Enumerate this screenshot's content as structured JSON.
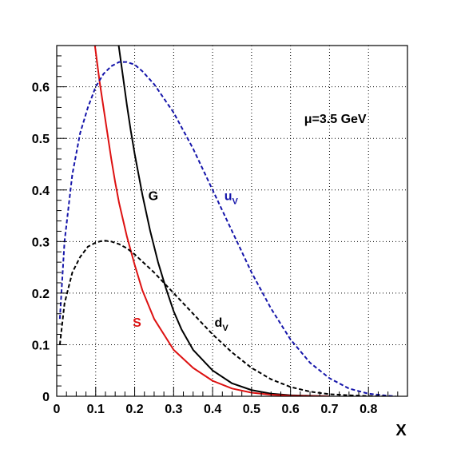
{
  "chart_data": {
    "type": "line",
    "title": "",
    "xlabel": "X",
    "ylabel": "",
    "xlim": [
      0,
      0.9
    ],
    "ylim": [
      0,
      0.68
    ],
    "xticks": [
      0,
      0.1,
      0.2,
      0.3,
      0.4,
      0.5,
      0.6,
      0.7,
      0.8
    ],
    "yticks": [
      0,
      0.1,
      0.2,
      0.3,
      0.4,
      0.5,
      0.6
    ],
    "xtick_labels": [
      "0",
      "0.1",
      "0.2",
      "0.3",
      "0.4",
      "0.5",
      "0.6",
      "0.7",
      "0.8"
    ],
    "ytick_labels": [
      "0",
      "0.1",
      "0.2",
      "0.3",
      "0.4",
      "0.5",
      "0.6"
    ],
    "grid": true,
    "annotation": {
      "mu": "μ",
      "text": "=3.5 GeV"
    },
    "series": [
      {
        "name": "G",
        "color": "#000000",
        "dash": "solid",
        "x": [
          0.159,
          0.17,
          0.18,
          0.19,
          0.2,
          0.22,
          0.24,
          0.26,
          0.28,
          0.3,
          0.32,
          0.35,
          0.4,
          0.45,
          0.5,
          0.55,
          0.6,
          0.65,
          0.7
        ],
        "y": [
          0.68,
          0.62,
          0.565,
          0.515,
          0.47,
          0.39,
          0.32,
          0.26,
          0.21,
          0.165,
          0.13,
          0.09,
          0.05,
          0.025,
          0.012,
          0.005,
          0.002,
          0.001,
          0.0
        ]
      },
      {
        "name": "S",
        "color": "#dd1111",
        "dash": "solid",
        "x": [
          0.098,
          0.11,
          0.12,
          0.13,
          0.14,
          0.15,
          0.16,
          0.18,
          0.2,
          0.22,
          0.25,
          0.3,
          0.35,
          0.4,
          0.45,
          0.5,
          0.55,
          0.6,
          0.7
        ],
        "y": [
          0.68,
          0.61,
          0.56,
          0.51,
          0.46,
          0.415,
          0.375,
          0.31,
          0.255,
          0.205,
          0.15,
          0.09,
          0.055,
          0.03,
          0.015,
          0.007,
          0.003,
          0.001,
          0.0
        ]
      },
      {
        "name": "u",
        "subscript": "V",
        "color": "#1515aa",
        "dash": "dashed",
        "x": [
          0.008,
          0.02,
          0.04,
          0.06,
          0.08,
          0.1,
          0.12,
          0.14,
          0.16,
          0.18,
          0.2,
          0.22,
          0.25,
          0.3,
          0.35,
          0.4,
          0.45,
          0.5,
          0.55,
          0.6,
          0.65,
          0.7,
          0.75,
          0.8,
          0.85,
          0.87
        ],
        "y": [
          0.15,
          0.3,
          0.43,
          0.51,
          0.56,
          0.6,
          0.625,
          0.64,
          0.648,
          0.648,
          0.643,
          0.63,
          0.605,
          0.55,
          0.48,
          0.4,
          0.32,
          0.24,
          0.17,
          0.11,
          0.065,
          0.035,
          0.015,
          0.005,
          0.001,
          0.0
        ]
      },
      {
        "name": "d",
        "subscript": "V",
        "color": "#000000",
        "dash": "dashed",
        "x": [
          0.008,
          0.02,
          0.04,
          0.06,
          0.08,
          0.1,
          0.12,
          0.14,
          0.16,
          0.18,
          0.2,
          0.25,
          0.3,
          0.35,
          0.4,
          0.45,
          0.5,
          0.55,
          0.6,
          0.65,
          0.7,
          0.75,
          0.8,
          0.85
        ],
        "y": [
          0.1,
          0.18,
          0.24,
          0.27,
          0.29,
          0.298,
          0.302,
          0.3,
          0.295,
          0.287,
          0.275,
          0.24,
          0.2,
          0.16,
          0.12,
          0.085,
          0.055,
          0.033,
          0.018,
          0.009,
          0.004,
          0.002,
          0.0005,
          0.0
        ]
      }
    ],
    "labels": [
      {
        "series": "G",
        "x": 0.235,
        "y": 0.38
      },
      {
        "series": "S",
        "x": 0.195,
        "y": 0.135
      },
      {
        "series": "u",
        "x": 0.43,
        "y": 0.38
      },
      {
        "series": "d",
        "x": 0.405,
        "y": 0.135
      }
    ],
    "annotation_pos": {
      "x": 0.635,
      "y": 0.53
    }
  }
}
